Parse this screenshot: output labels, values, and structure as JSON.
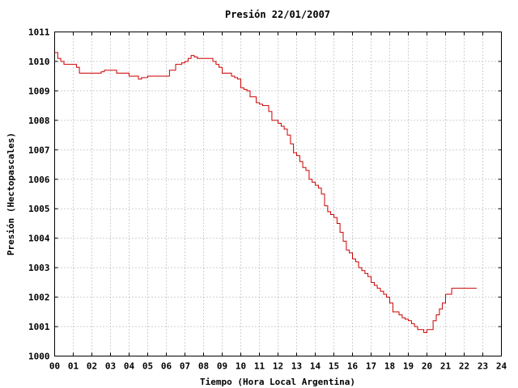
{
  "chart_data": {
    "type": "line",
    "title": "Presión 22/01/2007",
    "xlabel": "Tiempo (Hora Local Argentina)",
    "ylabel": "Presión (Hectopascales)",
    "xlim": [
      0,
      24
    ],
    "ylim": [
      1000,
      1011
    ],
    "grid": true,
    "x_ticks": [
      "00",
      "01",
      "02",
      "03",
      "04",
      "05",
      "06",
      "07",
      "08",
      "09",
      "10",
      "11",
      "12",
      "13",
      "14",
      "15",
      "16",
      "17",
      "18",
      "19",
      "20",
      "21",
      "22",
      "23",
      "24"
    ],
    "y_ticks": [
      "1000",
      "1001",
      "1002",
      "1003",
      "1004",
      "1005",
      "1006",
      "1007",
      "1008",
      "1009",
      "1010",
      "1011"
    ],
    "series": [
      {
        "color": "#cc0000",
        "step": true,
        "x": [
          0.0,
          0.17,
          0.33,
          0.5,
          1.17,
          1.33,
          2.5,
          2.67,
          3.17,
          3.33,
          4.0,
          4.5,
          4.67,
          5.0,
          5.5,
          6.17,
          6.5,
          6.83,
          7.0,
          7.17,
          7.33,
          7.5,
          7.67,
          7.83,
          8.17,
          8.5,
          8.67,
          8.83,
          9.0,
          9.17,
          9.5,
          9.67,
          9.83,
          10.0,
          10.17,
          10.33,
          10.5,
          10.83,
          11.0,
          11.17,
          11.33,
          11.5,
          11.67,
          12.0,
          12.17,
          12.33,
          12.5,
          12.67,
          12.83,
          13.0,
          13.17,
          13.33,
          13.5,
          13.67,
          13.83,
          14.0,
          14.17,
          14.33,
          14.5,
          14.67,
          14.83,
          15.0,
          15.17,
          15.33,
          15.5,
          15.67,
          15.83,
          16.0,
          16.17,
          16.33,
          16.5,
          16.67,
          16.83,
          17.0,
          17.17,
          17.33,
          17.5,
          17.67,
          17.83,
          18.0,
          18.17,
          18.5,
          18.67,
          18.83,
          19.0,
          19.17,
          19.33,
          19.5,
          19.83,
          20.0,
          20.33,
          20.5,
          20.67,
          20.83,
          21.0,
          21.33,
          21.5,
          21.67,
          21.83,
          22.0,
          22.17,
          22.33,
          22.67
        ],
        "y": [
          1010.3,
          1010.1,
          1010.0,
          1009.9,
          1009.8,
          1009.6,
          1009.65,
          1009.7,
          1009.7,
          1009.6,
          1009.5,
          1009.4,
          1009.45,
          1009.5,
          1009.5,
          1009.7,
          1009.9,
          1009.95,
          1010.0,
          1010.1,
          1010.2,
          1010.15,
          1010.1,
          1010.1,
          1010.1,
          1010.0,
          1009.9,
          1009.8,
          1009.6,
          1009.6,
          1009.5,
          1009.45,
          1009.4,
          1009.1,
          1009.05,
          1009.0,
          1008.8,
          1008.6,
          1008.55,
          1008.5,
          1008.5,
          1008.3,
          1008.0,
          1007.9,
          1007.8,
          1007.7,
          1007.5,
          1007.2,
          1006.9,
          1006.8,
          1006.6,
          1006.4,
          1006.3,
          1006.0,
          1005.9,
          1005.8,
          1005.7,
          1005.5,
          1005.1,
          1004.9,
          1004.8,
          1004.7,
          1004.5,
          1004.2,
          1003.9,
          1003.6,
          1003.5,
          1003.3,
          1003.2,
          1003.0,
          1002.9,
          1002.8,
          1002.7,
          1002.5,
          1002.4,
          1002.3,
          1002.2,
          1002.1,
          1002.0,
          1001.8,
          1001.5,
          1001.4,
          1001.3,
          1001.25,
          1001.2,
          1001.1,
          1001.0,
          1000.9,
          1000.8,
          1000.9,
          1001.2,
          1001.4,
          1001.6,
          1001.8,
          1002.1,
          1002.3,
          1002.3,
          1002.3,
          1002.3,
          1002.3,
          1002.3,
          1002.3,
          1002.3
        ]
      }
    ]
  }
}
